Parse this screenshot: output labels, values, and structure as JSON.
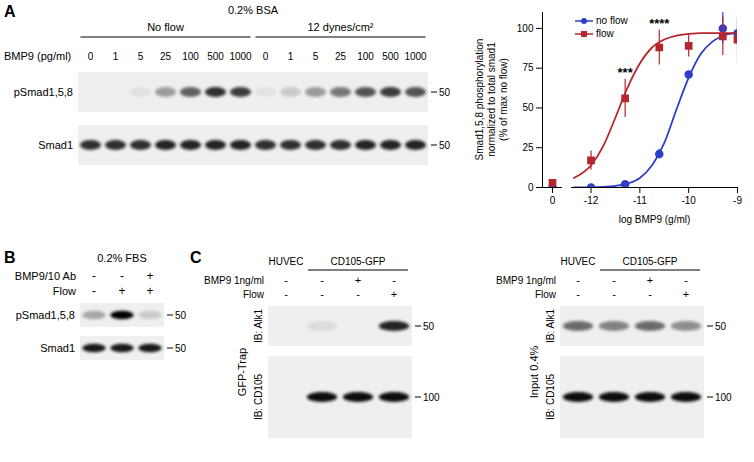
{
  "chart_data": {
    "type": "line",
    "ylabel": [
      "Smad1,5,8 phosphorylation",
      "normalized to total smad1",
      "(% of max no flow)"
    ],
    "xlabel": "log BMP9 (g/ml)",
    "zero_label": "0",
    "x": [
      -12,
      -11.301,
      -10.602,
      -10,
      -9.301,
      -9
    ],
    "xlim": [
      -12.4,
      -9
    ],
    "xticks": [
      -12,
      -11,
      -10,
      -9
    ],
    "ylim": [
      0,
      110
    ],
    "yticks": [
      0,
      25,
      50,
      75,
      100
    ],
    "legend": "top-left",
    "fit_x": [
      -12.35,
      -12,
      -11.75,
      -11.5,
      -11.25,
      -11,
      -10.75,
      -10.5,
      -10.25,
      -10,
      -9.75,
      -9.5,
      -9.25,
      -9
    ],
    "series": [
      {
        "name": "no flow",
        "color": "#2d3fc7",
        "marker": "circle",
        "values": [
          0,
          2,
          21,
          71,
          100,
          97
        ],
        "errors": [
          1,
          1,
          3,
          2,
          10,
          8
        ],
        "zero_value": 0,
        "zero_error": 1,
        "fit_values": [
          0,
          0,
          0.3,
          1,
          2.5,
          6,
          14,
          28,
          49,
          69,
          84,
          92,
          96,
          97
        ]
      },
      {
        "name": "flow",
        "color": "#b5262e",
        "marker": "square",
        "values": [
          17,
          56,
          88,
          89,
          95,
          93
        ],
        "errors": [
          6,
          12,
          11,
          7,
          12,
          15
        ],
        "zero_value": 3,
        "zero_error": 1,
        "fit_values": [
          6,
          14,
          26,
          44,
          63,
          78,
          88,
          93,
          95.5,
          96.5,
          97,
          97,
          97,
          97
        ]
      }
    ],
    "annotations": [
      {
        "text": "***",
        "x": -11.301,
        "y": 72
      },
      {
        "text": "****",
        "x": -10.602,
        "y": 103
      }
    ]
  },
  "figure": {
    "panel_A": {
      "letter": "A",
      "condition": "0.2% BSA",
      "groups": [
        "No flow",
        "12 dynes/cm²"
      ],
      "row_label": "BMP9 (pg/ml)",
      "lane_labels": [
        0,
        1,
        5,
        25,
        100,
        500,
        1000,
        0,
        1,
        5,
        25,
        100,
        500,
        1000
      ],
      "blots": [
        {
          "name": "pSmad1,5,8",
          "marker": "50",
          "intensity": [
            0,
            0,
            0.06,
            0.35,
            0.6,
            0.8,
            0.75,
            0.05,
            0.15,
            0.35,
            0.5,
            0.65,
            0.75,
            0.65
          ]
        },
        {
          "name": "Smad1",
          "marker": "50",
          "intensity": [
            0.8,
            0.8,
            0.8,
            0.85,
            0.85,
            0.85,
            0.85,
            0.8,
            0.8,
            0.8,
            0.8,
            0.85,
            0.85,
            0.85
          ]
        }
      ]
    },
    "panel_B": {
      "letter": "B",
      "condition": "0.2% FBS",
      "conditions": [
        {
          "name": "BMP9/10 Ab",
          "values": [
            "-",
            "-",
            "+"
          ]
        },
        {
          "name": "Flow",
          "values": [
            "-",
            "+",
            "+"
          ]
        }
      ],
      "blots": [
        {
          "name": "pSmad1,5,8",
          "marker": "50",
          "intensity": [
            0.3,
            1,
            0.15
          ]
        },
        {
          "name": "Smad1",
          "marker": "50",
          "intensity": [
            0.9,
            0.9,
            0.9
          ]
        }
      ]
    },
    "panel_C": {
      "letter": "C",
      "headers": [
        {
          "text": "HUVEC",
          "span": 1
        },
        {
          "text": "CD105-GFP",
          "span": 3
        }
      ],
      "conditions": [
        {
          "name": "BMP9 1ng/ml",
          "values": [
            "-",
            "-",
            "+",
            "-"
          ]
        },
        {
          "name": "Flow",
          "values": [
            "-",
            "-",
            "-",
            "+"
          ]
        }
      ],
      "sides": [
        {
          "name": "GFP-Trap",
          "blots": [
            {
              "name": "IB: Alk1",
              "marker": "50",
              "intensity": [
                0,
                0.08,
                0,
                0.85
              ]
            },
            {
              "name": "IB: CD105",
              "marker": "100",
              "intensity": [
                0,
                0.95,
                0.95,
                0.95
              ]
            }
          ]
        },
        {
          "name": "Input 0.4%",
          "blots": [
            {
              "name": "IB: Alk1",
              "marker": "50",
              "intensity": [
                0.55,
                0.45,
                0.55,
                0.4
              ]
            },
            {
              "name": "IB: CD105",
              "marker": "100",
              "intensity": [
                0.95,
                0.95,
                0.95,
                0.95
              ]
            }
          ]
        }
      ]
    }
  }
}
